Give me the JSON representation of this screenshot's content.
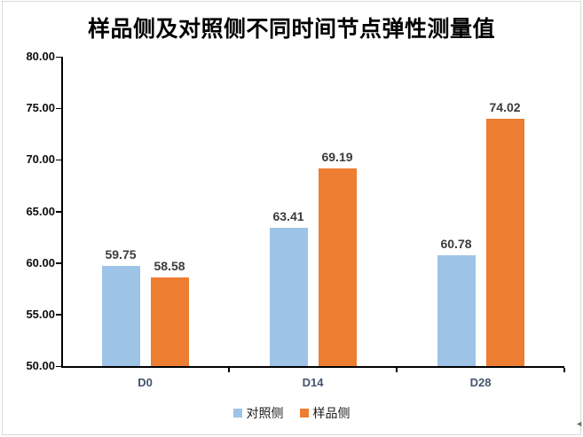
{
  "chart_data": {
    "type": "bar",
    "title": "样品侧及对照侧不同时间节点弹性测量值",
    "categories": [
      "D0",
      "D14",
      "D28"
    ],
    "series": [
      {
        "name": "对照侧",
        "color": "#9DC3E6",
        "values": [
          59.75,
          63.41,
          60.78
        ]
      },
      {
        "name": "样品侧",
        "color": "#ED7D31",
        "values": [
          58.58,
          69.19,
          74.02
        ]
      }
    ],
    "data_labels": [
      [
        "59.75",
        "63.41",
        "60.78"
      ],
      [
        "58.58",
        "69.19",
        "74.02"
      ]
    ],
    "ylim": [
      50,
      80
    ],
    "ytick_step": 5,
    "ytick_labels": [
      "50.00",
      "55.00",
      "60.00",
      "65.00",
      "70.00",
      "75.00",
      "80.00"
    ],
    "xlabel": "",
    "ylabel": "",
    "grid": false,
    "legend_position": "bottom"
  },
  "colors": {
    "frame_border": "#D9D9D9",
    "axis": "#000000",
    "series_control": "#9DC3E6",
    "series_sample": "#ED7D31",
    "data_label": "#3B3B3B",
    "category_label": "#44546A"
  },
  "decorations": {
    "corner_arrow": "◄"
  }
}
